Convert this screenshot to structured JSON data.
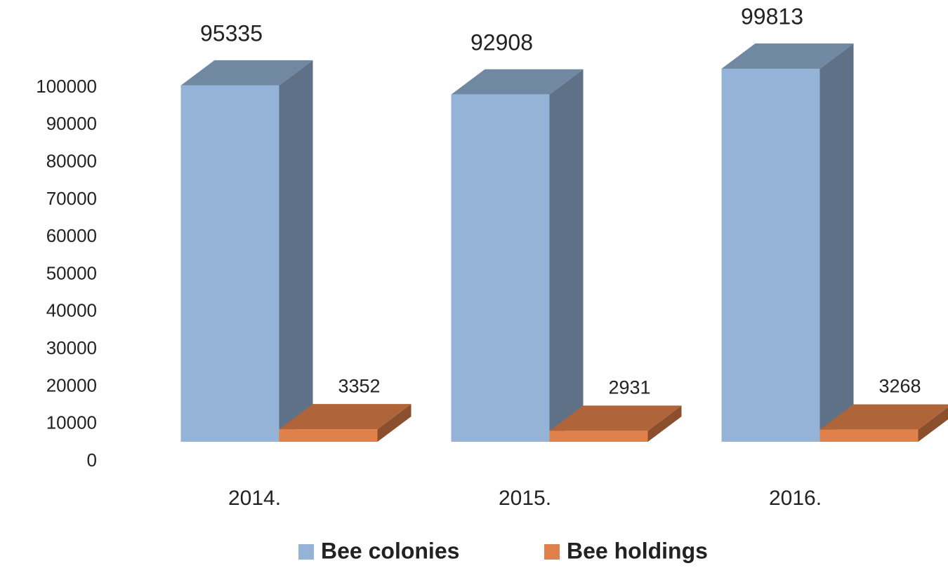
{
  "chart_data": {
    "type": "bar3d",
    "categories": [
      "2014.",
      "2015.",
      "2016."
    ],
    "series": [
      {
        "name": "Bee colonies",
        "color": "#95b3d7",
        "values": [
          95335,
          92908,
          99813
        ]
      },
      {
        "name": "Bee holdings",
        "color": "#e0804a",
        "values": [
          3352,
          2931,
          3268
        ]
      }
    ],
    "ylim": [
      0,
      100000
    ],
    "yticks": [
      0,
      10000,
      20000,
      30000,
      40000,
      50000,
      60000,
      70000,
      80000,
      90000,
      100000
    ],
    "grid": false,
    "legend": "bottom"
  }
}
